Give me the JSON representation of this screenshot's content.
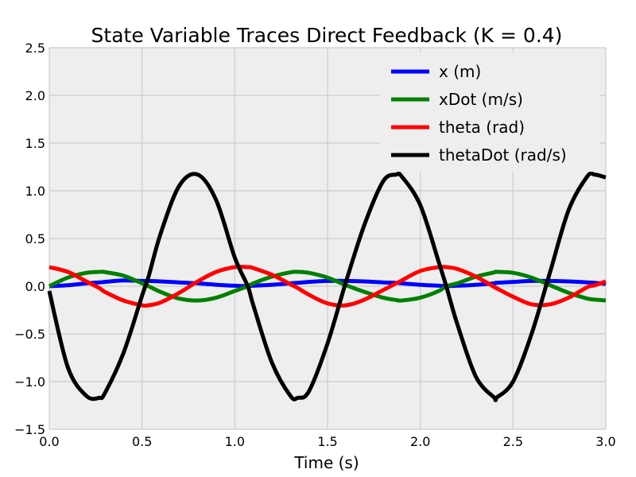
{
  "chart_data": {
    "type": "line",
    "title": "State Variable Traces Direct Feedback (K = 0.4)",
    "xlabel": "Time (s)",
    "ylabel": "",
    "xlim": [
      0.0,
      3.0
    ],
    "ylim": [
      -1.5,
      2.5
    ],
    "xticks": [
      "0.0",
      "0.5",
      "1.0",
      "1.5",
      "2.0",
      "2.5",
      "3.0"
    ],
    "yticks": [
      "−1.5",
      "−1.0",
      "−0.5",
      "0.0",
      "0.5",
      "1.0",
      "1.5",
      "2.0",
      "2.5"
    ],
    "grid": true,
    "background": "#eeeeee",
    "legend_position": "top-right",
    "x": [
      0.0,
      0.1,
      0.2,
      0.27,
      0.3,
      0.4,
      0.5,
      0.535,
      0.6,
      0.7,
      0.8,
      0.9,
      1.0,
      1.07,
      1.1,
      1.2,
      1.3,
      1.34,
      1.4,
      1.5,
      1.6,
      1.7,
      1.8,
      1.87,
      1.9,
      2.0,
      2.1,
      2.14,
      2.2,
      2.3,
      2.4,
      2.41,
      2.5,
      2.6,
      2.7,
      2.8,
      2.9,
      2.94,
      3.0
    ],
    "series": [
      {
        "name": "x (m)",
        "color": "#0000ff",
        "values": [
          0.0,
          0.01,
          0.03,
          0.04,
          0.045,
          0.06,
          0.055,
          0.055,
          0.05,
          0.04,
          0.03,
          0.015,
          0.005,
          0.0,
          0.005,
          0.015,
          0.03,
          0.035,
          0.045,
          0.055,
          0.055,
          0.05,
          0.04,
          0.035,
          0.03,
          0.015,
          0.005,
          0.0,
          0.005,
          0.015,
          0.03,
          0.035,
          0.045,
          0.055,
          0.055,
          0.05,
          0.04,
          0.035,
          0.025
        ]
      },
      {
        "name": "xDot (m/s)",
        "color": "#008000",
        "values": [
          0.0,
          0.09,
          0.14,
          0.15,
          0.148,
          0.11,
          0.03,
          0.0,
          -0.06,
          -0.13,
          -0.15,
          -0.12,
          -0.05,
          0.0,
          0.03,
          0.1,
          0.145,
          0.15,
          0.14,
          0.09,
          0.01,
          -0.06,
          -0.12,
          -0.145,
          -0.15,
          -0.12,
          -0.05,
          0.0,
          0.03,
          0.1,
          0.145,
          0.15,
          0.14,
          0.09,
          0.01,
          -0.07,
          -0.13,
          -0.14,
          -0.15
        ]
      },
      {
        "name": "theta (rad)",
        "color": "#ff0000",
        "values": [
          0.2,
          0.15,
          0.05,
          -0.02,
          -0.06,
          -0.15,
          -0.2,
          -0.2,
          -0.17,
          -0.07,
          0.05,
          0.15,
          0.2,
          0.2,
          0.19,
          0.12,
          0.02,
          -0.02,
          -0.09,
          -0.18,
          -0.2,
          -0.14,
          -0.04,
          0.03,
          0.06,
          0.16,
          0.2,
          0.2,
          0.18,
          0.1,
          -0.01,
          -0.02,
          -0.11,
          -0.19,
          -0.19,
          -0.12,
          -0.01,
          0.01,
          0.05
        ]
      },
      {
        "name": "thetaDot (rad/s)",
        "color": "#000000",
        "values": [
          -0.05,
          -0.85,
          -1.15,
          -1.17,
          -1.12,
          -0.7,
          -0.1,
          0.1,
          0.55,
          1.05,
          1.17,
          0.9,
          0.3,
          0.0,
          -0.2,
          -0.8,
          -1.15,
          -1.17,
          -1.1,
          -0.6,
          0.05,
          0.65,
          1.1,
          1.17,
          1.15,
          0.85,
          0.25,
          0.0,
          -0.4,
          -0.95,
          -1.17,
          -1.17,
          -1.0,
          -0.5,
          0.15,
          0.8,
          1.15,
          1.17,
          1.14
        ]
      }
    ]
  }
}
